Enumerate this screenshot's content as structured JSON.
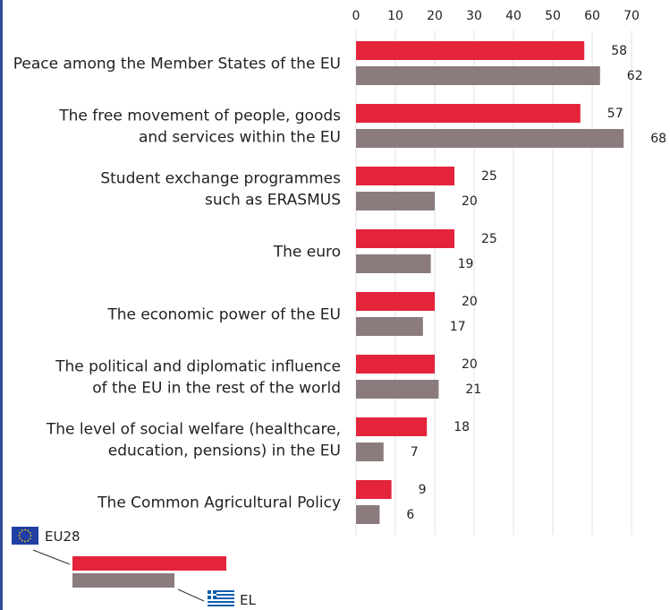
{
  "chart_data": {
    "type": "bar",
    "orientation": "horizontal",
    "categories": [
      [
        "Peace among the Member States of the EU"
      ],
      [
        "The free movement of people, goods",
        "and services within the EU"
      ],
      [
        "Student exchange programmes",
        "such as ERASMUS"
      ],
      [
        "The euro"
      ],
      [
        "The economic power of the EU"
      ],
      [
        "The political and diplomatic influence",
        "of the EU in the rest of the world"
      ],
      [
        "The level of social welfare (healthcare,",
        "education, pensions) in the EU"
      ],
      [
        "The Common Agricultural Policy"
      ]
    ],
    "series": [
      {
        "name": "EU28",
        "color": "#e3243b",
        "values": [
          58,
          57,
          25,
          25,
          20,
          20,
          18,
          9
        ]
      },
      {
        "name": "EL",
        "color": "#8c7b7d",
        "values": [
          62,
          68,
          20,
          19,
          17,
          21,
          7,
          6
        ]
      }
    ],
    "xlim": [
      0,
      70
    ],
    "xticks": [
      0,
      10,
      20,
      30,
      40,
      50,
      60,
      70
    ],
    "axis_position": "top",
    "grid": true,
    "legend_position": "bottom-left",
    "legend_icons": [
      "eu-flag-icon",
      "greece-flag-icon"
    ],
    "frame_color": "#2f4e9c"
  }
}
